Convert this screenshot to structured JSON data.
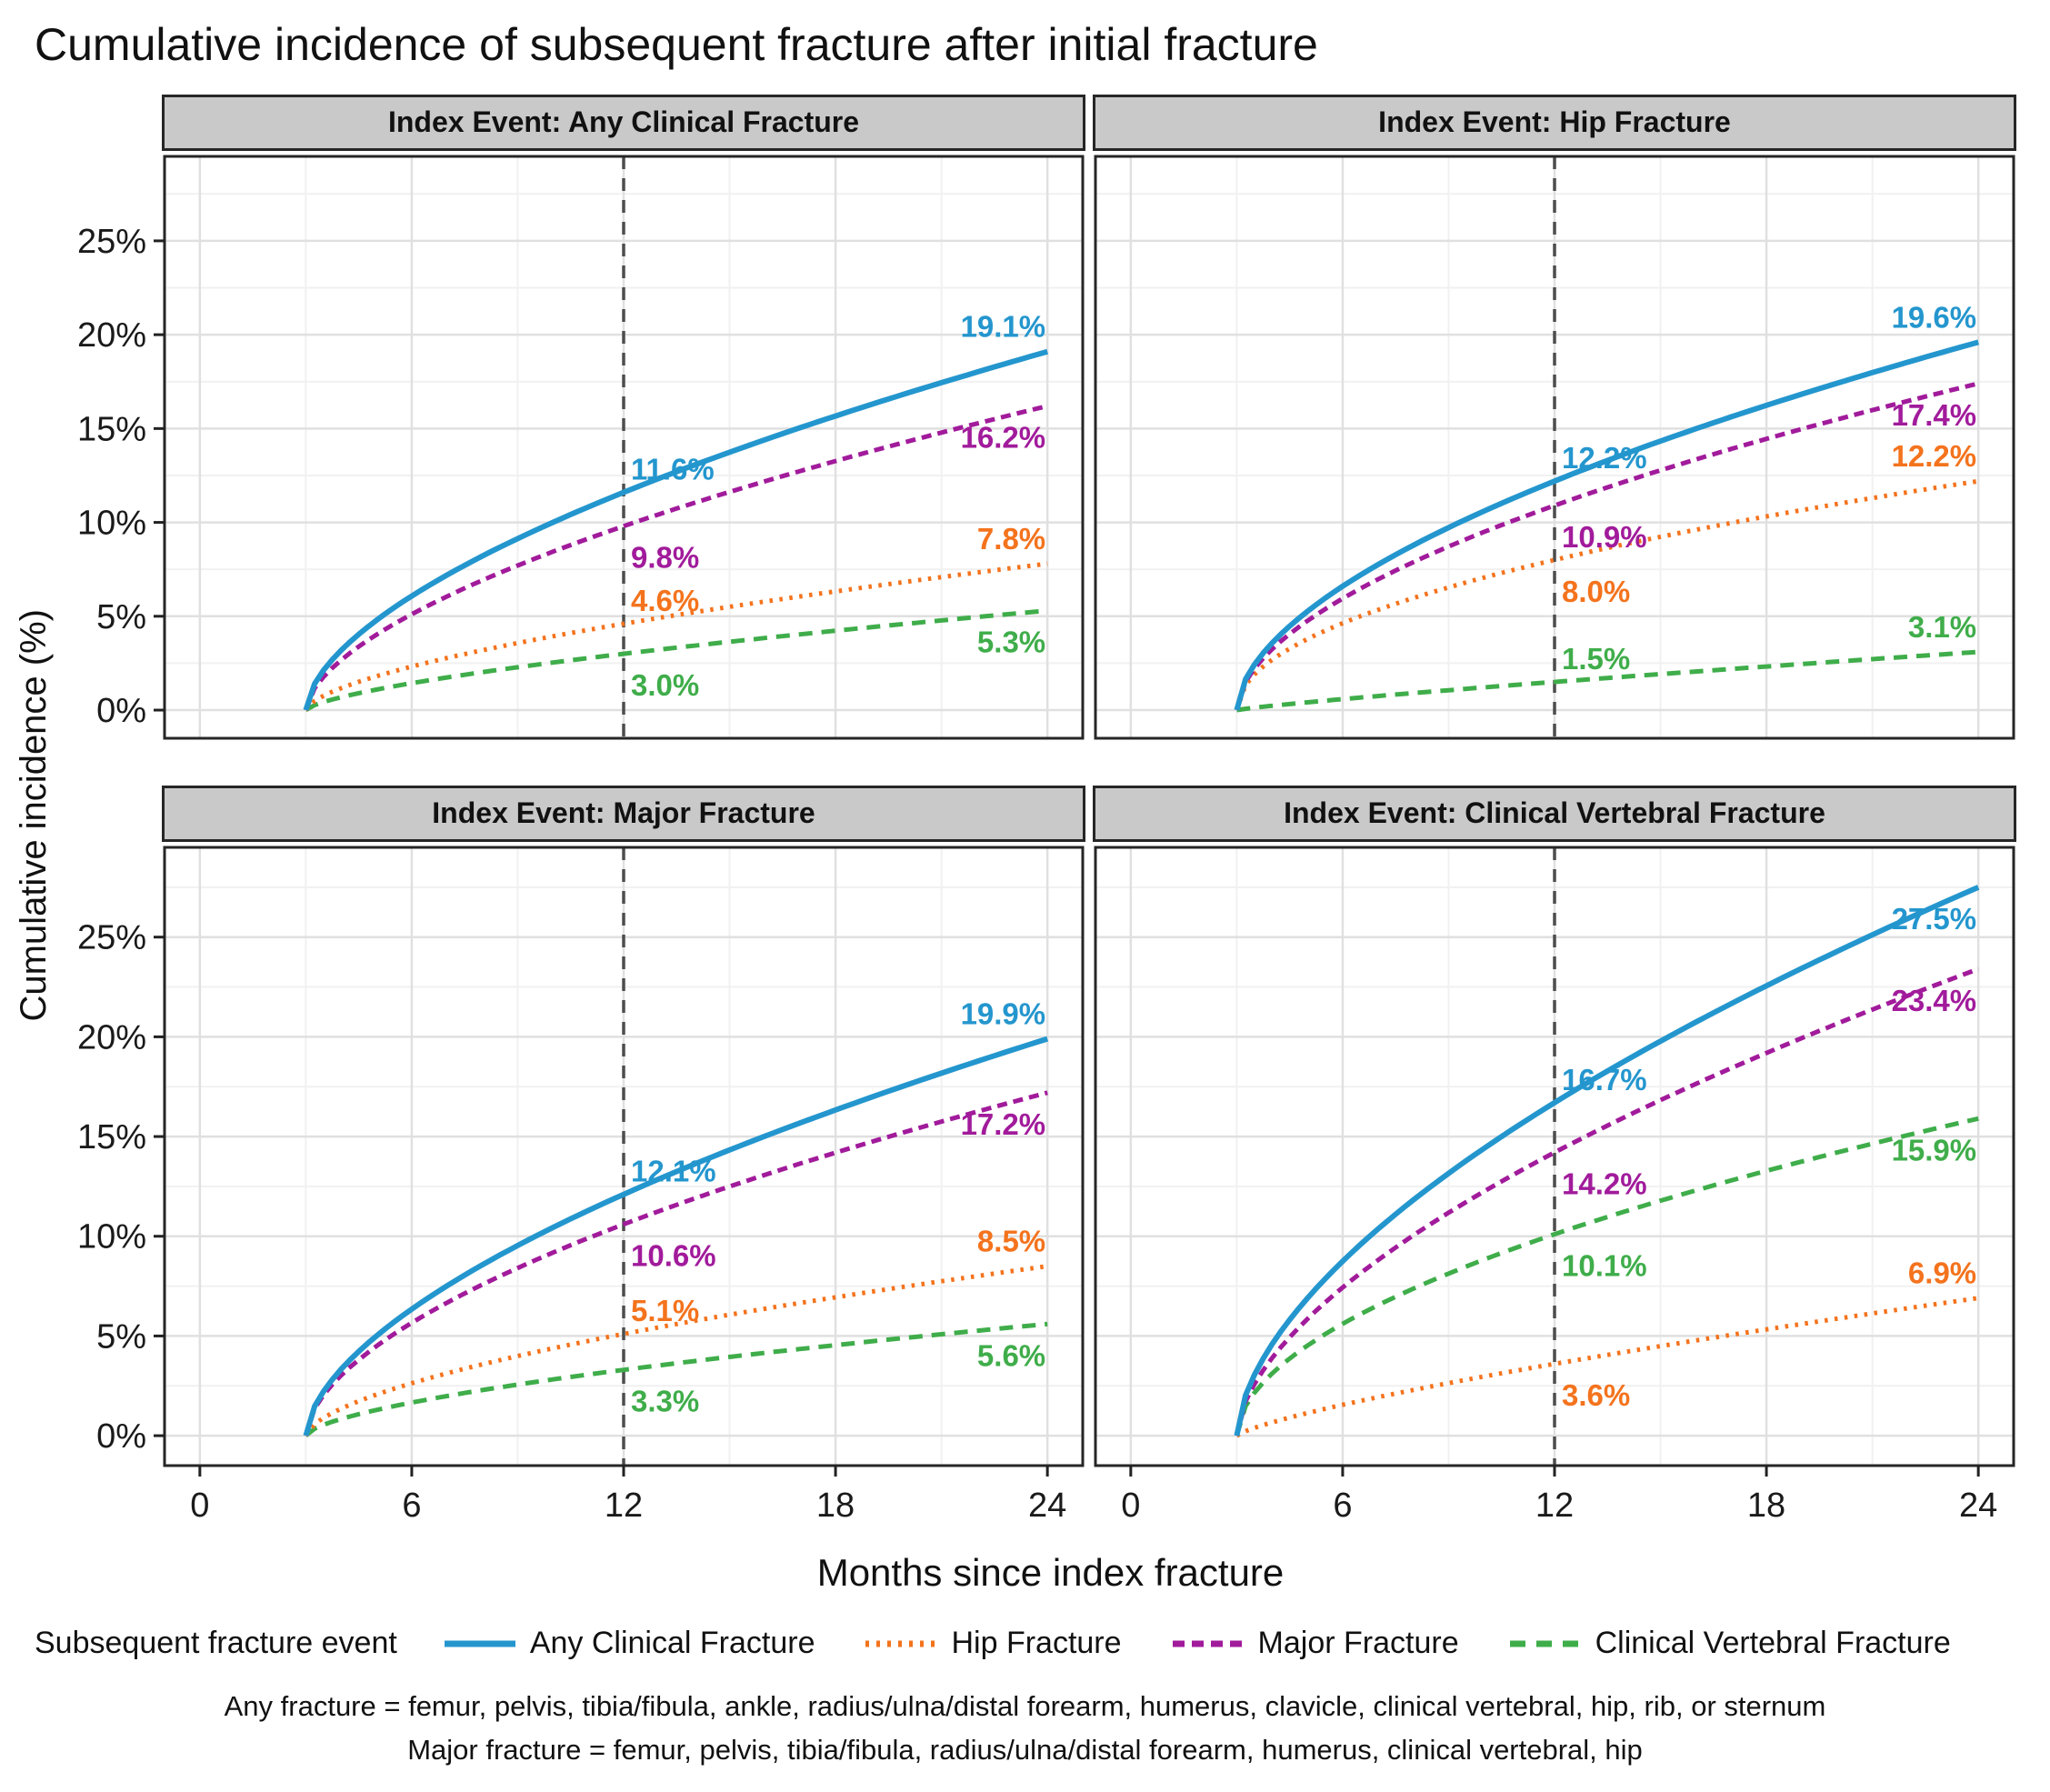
{
  "title": "Cumulative incidence of subsequent fracture after initial fracture",
  "x_axis": {
    "label": "Months since index fracture",
    "ticks": [
      0,
      6,
      12,
      18,
      24
    ],
    "minor_ticks": [
      3,
      9,
      15,
      21
    ],
    "domain": [
      -1.0,
      25.0
    ],
    "curve_start_month": 3,
    "dashed_line_month": 12
  },
  "y_axis": {
    "label": "Cumulative incidence (%)",
    "ticks": [
      0,
      5,
      10,
      15,
      20,
      25
    ],
    "minor_ticks": [
      2.5,
      7.5,
      12.5,
      17.5,
      22.5,
      27.5
    ],
    "tick_suffix": "%",
    "domain": [
      -1.5,
      29.5
    ]
  },
  "colors": {
    "blue": "#2496ce",
    "orange": "#f4731d",
    "purple": "#a11b9b",
    "green": "#3fad4a",
    "panel_header_bg": "#c9c9c9",
    "panel_border": "#262626",
    "grid_major": "#e0e0e0",
    "grid_minor": "#f1f1f1",
    "dashed_line": "#4d4d4d"
  },
  "legend": {
    "title": "Subsequent fracture event",
    "items": [
      {
        "label": "Any Clinical Fracture",
        "color": "blue",
        "dash": "solid"
      },
      {
        "label": "Hip Fracture",
        "color": "orange",
        "dash": "dotted"
      },
      {
        "label": "Major Fracture",
        "color": "purple",
        "dash": "dashed"
      },
      {
        "label": "Clinical Vertebral Fracture",
        "color": "green",
        "dash": "longdash"
      }
    ]
  },
  "footnotes": [
    "Any fracture = femur, pelvis, tibia/fibula, ankle, radius/ulna/distal forearm, humerus, clavicle, clinical vertebral, hip, rib, or sternum",
    "Major fracture = femur, pelvis, tibia/fibula, radius/ulna/distal forearm, humerus, clinical vertebral, hip"
  ],
  "chart_data": {
    "type": "line",
    "x_unit": "months since index fracture",
    "y_unit": "cumulative incidence (%)",
    "annotated_months": [
      12,
      24
    ],
    "panels": [
      {
        "title": "Index Event: Any Clinical Fracture",
        "series": [
          {
            "name": "Any Clinical Fracture",
            "color": "blue",
            "dash": "solid",
            "values": {
              "12": 11.6,
              "24": 19.1
            },
            "label12_pos": "above",
            "label24_pos": "above"
          },
          {
            "name": "Major Fracture",
            "color": "purple",
            "dash": "dashed",
            "values": {
              "12": 9.8,
              "24": 16.2
            },
            "label12_pos": "below",
            "label24_pos": "below"
          },
          {
            "name": "Hip Fracture",
            "color": "orange",
            "dash": "dotted",
            "values": {
              "12": 4.6,
              "24": 7.8
            },
            "label12_pos": "above",
            "label24_pos": "above"
          },
          {
            "name": "Clinical Vertebral Fracture",
            "color": "green",
            "dash": "longdash",
            "values": {
              "12": 3.0,
              "24": 5.3
            },
            "label12_pos": "below",
            "label24_pos": "below"
          }
        ]
      },
      {
        "title": "Index Event: Hip Fracture",
        "series": [
          {
            "name": "Any Clinical Fracture",
            "color": "blue",
            "dash": "solid",
            "values": {
              "12": 12.2,
              "24": 19.6
            },
            "label12_pos": "above",
            "label24_pos": "above"
          },
          {
            "name": "Major Fracture",
            "color": "purple",
            "dash": "dashed",
            "values": {
              "12": 10.9,
              "24": 17.4
            },
            "label12_pos": "below",
            "label24_pos": "below"
          },
          {
            "name": "Hip Fracture",
            "color": "orange",
            "dash": "dotted",
            "values": {
              "12": 8.0,
              "24": 12.2
            },
            "label12_pos": "below",
            "label24_pos": "above"
          },
          {
            "name": "Clinical Vertebral Fracture",
            "color": "green",
            "dash": "longdash",
            "values": {
              "12": 1.5,
              "24": 3.1
            },
            "label12_pos": "above",
            "label24_pos": "above"
          }
        ]
      },
      {
        "title": "Index Event: Major Fracture",
        "series": [
          {
            "name": "Any Clinical Fracture",
            "color": "blue",
            "dash": "solid",
            "values": {
              "12": 12.1,
              "24": 19.9
            },
            "label12_pos": "above",
            "label24_pos": "above"
          },
          {
            "name": "Major Fracture",
            "color": "purple",
            "dash": "dashed",
            "values": {
              "12": 10.6,
              "24": 17.2
            },
            "label12_pos": "below",
            "label24_pos": "below"
          },
          {
            "name": "Hip Fracture",
            "color": "orange",
            "dash": "dotted",
            "values": {
              "12": 5.1,
              "24": 8.5
            },
            "label12_pos": "above",
            "label24_pos": "above"
          },
          {
            "name": "Clinical Vertebral Fracture",
            "color": "green",
            "dash": "longdash",
            "values": {
              "12": 3.3,
              "24": 5.6
            },
            "label12_pos": "below",
            "label24_pos": "below"
          }
        ]
      },
      {
        "title": "Index Event: Clinical Vertebral Fracture",
        "series": [
          {
            "name": "Any Clinical Fracture",
            "color": "blue",
            "dash": "solid",
            "values": {
              "12": 16.7,
              "24": 27.5
            },
            "label12_pos": "above",
            "label24_pos": "below"
          },
          {
            "name": "Major Fracture",
            "color": "purple",
            "dash": "dashed",
            "values": {
              "12": 14.2,
              "24": 23.4
            },
            "label12_pos": "below",
            "label24_pos": "below"
          },
          {
            "name": "Clinical Vertebral Fracture",
            "color": "green",
            "dash": "longdash",
            "values": {
              "12": 10.1,
              "24": 15.9
            },
            "label12_pos": "below",
            "label24_pos": "below"
          },
          {
            "name": "Hip Fracture",
            "color": "orange",
            "dash": "dotted",
            "values": {
              "12": 3.6,
              "24": 6.9
            },
            "label12_pos": "below",
            "label24_pos": "above"
          }
        ]
      }
    ]
  }
}
